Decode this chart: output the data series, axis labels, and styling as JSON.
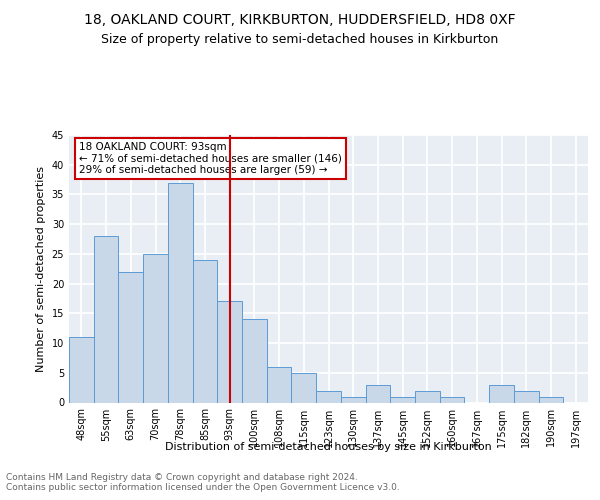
{
  "title1": "18, OAKLAND COURT, KIRKBURTON, HUDDERSFIELD, HD8 0XF",
  "title2": "Size of property relative to semi-detached houses in Kirkburton",
  "xlabel": "Distribution of semi-detached houses by size in Kirkburton",
  "ylabel": "Number of semi-detached properties",
  "footnote": "Contains HM Land Registry data © Crown copyright and database right 2024.\nContains public sector information licensed under the Open Government Licence v3.0.",
  "categories": [
    "48sqm",
    "55sqm",
    "63sqm",
    "70sqm",
    "78sqm",
    "85sqm",
    "93sqm",
    "100sqm",
    "108sqm",
    "115sqm",
    "123sqm",
    "130sqm",
    "137sqm",
    "145sqm",
    "152sqm",
    "160sqm",
    "167sqm",
    "175sqm",
    "182sqm",
    "190sqm",
    "197sqm"
  ],
  "values": [
    11,
    28,
    22,
    25,
    37,
    24,
    17,
    14,
    6,
    5,
    2,
    1,
    3,
    1,
    2,
    1,
    0,
    3,
    2,
    1,
    0
  ],
  "bar_color": "#c8d8e8",
  "bar_edge_color": "#5b9bd5",
  "reference_line_x": "93sqm",
  "reference_line_color": "#cc0000",
  "annotation_title": "18 OAKLAND COURT: 93sqm",
  "annotation_line1": "← 71% of semi-detached houses are smaller (146)",
  "annotation_line2": "29% of semi-detached houses are larger (59) →",
  "annotation_box_color": "#cc0000",
  "ylim": [
    0,
    45
  ],
  "yticks": [
    0,
    5,
    10,
    15,
    20,
    25,
    30,
    35,
    40,
    45
  ],
  "background_color": "#e8eef4",
  "grid_color": "#ffffff",
  "title1_fontsize": 10,
  "title2_fontsize": 9,
  "axis_fontsize": 8,
  "tick_fontsize": 7,
  "footnote_fontsize": 6.5
}
